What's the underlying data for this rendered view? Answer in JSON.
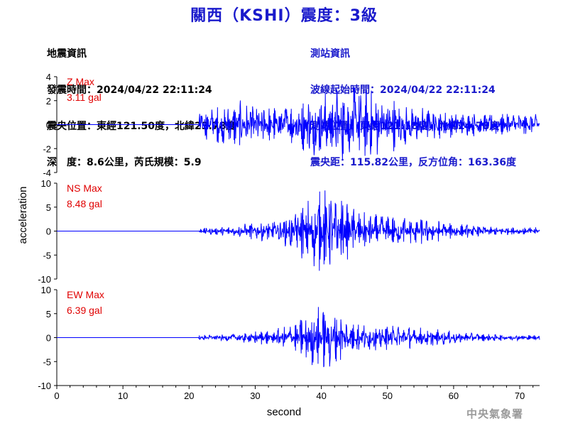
{
  "title": "關西（KSHI）震度：3級",
  "earthquake_info": {
    "heading": "地震資訊",
    "origin_time": "發震時間：2024/04/22 22:11:24",
    "epicenter": "震央位置：東經121.50度，北緯23.78度",
    "depth_magnitude": "深　度：8.6公里，芮氏規模：5.9"
  },
  "station_info": {
    "heading": "測站資訊",
    "wave_start": "波線起始時間：2024/04/22 22:11:24",
    "station_location": "測站位置：東經121.18度，北緯24.78度",
    "distance_azimuth": "震央距：115.82公里，反方位角：163.36度"
  },
  "agency": "中央氣象署",
  "colors": {
    "title": "#1a1acc",
    "trace": "#0000ff",
    "max_label": "#e00000",
    "station_info": "#1a1acc"
  },
  "chart_data": {
    "type": "line",
    "xlabel": "second",
    "ylabel": "acceleration",
    "xlim": [
      0,
      73
    ],
    "x_ticks": [
      0,
      10,
      20,
      30,
      40,
      50,
      60,
      70
    ],
    "panels": [
      {
        "name": "Z",
        "max_label": "Z Max",
        "max_value": "3.11 gal",
        "peak": 3.11,
        "ylim": [
          -4,
          4
        ],
        "y_ticks": [
          4,
          2,
          0,
          -2,
          -4
        ]
      },
      {
        "name": "NS",
        "max_label": "NS Max",
        "max_value": "8.48 gal",
        "peak": 8.48,
        "ylim": [
          -10,
          10
        ],
        "y_ticks": [
          10,
          5,
          0,
          -5,
          -10
        ]
      },
      {
        "name": "EW",
        "max_label": "EW Max",
        "max_value": "6.39 gal",
        "peak": 6.39,
        "ylim": [
          -10,
          10
        ],
        "y_ticks": [
          10,
          5,
          0,
          -5,
          -10
        ]
      }
    ]
  }
}
